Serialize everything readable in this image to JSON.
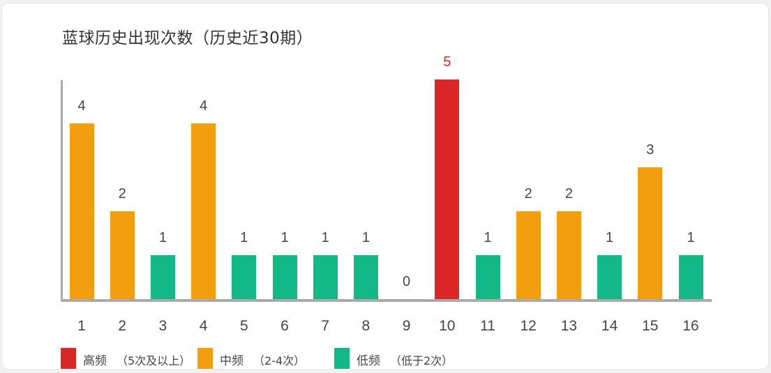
{
  "chart_data": {
    "type": "bar",
    "title": "蓝球历史出现次数（历史近30期）",
    "xlabel": "",
    "ylabel": "",
    "categories": [
      "1",
      "2",
      "3",
      "4",
      "5",
      "6",
      "7",
      "8",
      "9",
      "10",
      "11",
      "12",
      "13",
      "14",
      "15",
      "16"
    ],
    "values": [
      4,
      2,
      1,
      4,
      1,
      1,
      1,
      1,
      0,
      5,
      1,
      2,
      2,
      1,
      3,
      1
    ],
    "ylim": [
      0,
      5
    ],
    "grid": false,
    "data_labels": true,
    "legend_position": "bottom",
    "legend": [
      {
        "name": "高频",
        "range": "（5次及以上）",
        "color": "#d92626"
      },
      {
        "name": "中频",
        "range": "（2-4次）",
        "color": "#f29e0f"
      },
      {
        "name": "低频",
        "range": "（低于2次）",
        "color": "#12b886"
      }
    ]
  },
  "colors": {
    "high": "#d92626",
    "mid": "#f29e0f",
    "low": "#12b886",
    "axis": "#aaaaaa",
    "text": "#444444"
  }
}
